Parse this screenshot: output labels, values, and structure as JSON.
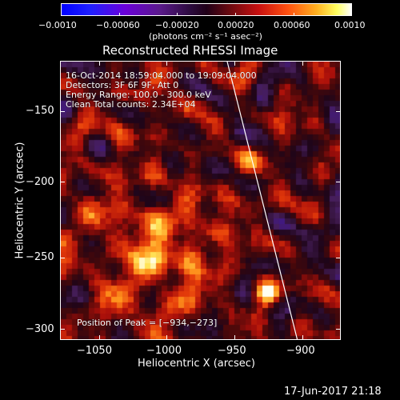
{
  "colorbar": {
    "ticks": [
      "−0.0010",
      "−0.00060",
      "−0.00020",
      "0.00020",
      "0.00060",
      "0.0010"
    ],
    "unit_label": "(photons cm⁻² s⁻¹ asec⁻²)"
  },
  "title": "Reconstructed RHESSI Image",
  "info": {
    "line1": "16-Oct-2014 18:59:04.000 to 19:09:04.000",
    "line2": "Detectors: 3F 6F 9F, Att 0",
    "line3": "Energy Range: 100.0 - 300.0 keV",
    "line4": "Clean    Total counts: 2.34E+04"
  },
  "peak_label": "Position of Peak = [−934,−273]",
  "axes": {
    "xlabel": "Heliocentric X (arcsec)",
    "ylabel": "Heliocentric Y (arcsec)",
    "xticks": [
      "−1050",
      "−1000",
      "−950",
      "−900"
    ],
    "yticks": [
      "−150",
      "−200",
      "−250",
      "−300"
    ]
  },
  "footer_date": "17-Jun-2017 21:18"
}
